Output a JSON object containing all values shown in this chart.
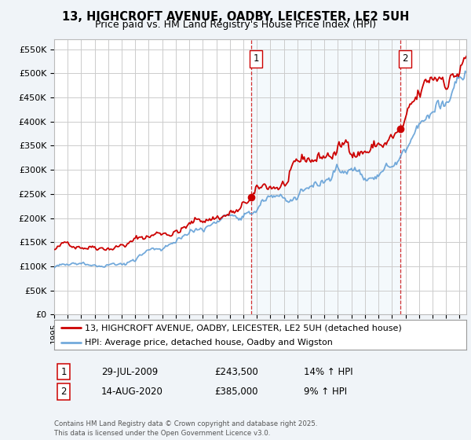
{
  "title_line1": "13, HIGHCROFT AVENUE, OADBY, LEICESTER, LE2 5UH",
  "title_line2": "Price paid vs. HM Land Registry's House Price Index (HPI)",
  "ylabel_ticks": [
    "£0",
    "£50K",
    "£100K",
    "£150K",
    "£200K",
    "£250K",
    "£300K",
    "£350K",
    "£400K",
    "£450K",
    "£500K",
    "£550K"
  ],
  "ytick_values": [
    0,
    50000,
    100000,
    150000,
    200000,
    250000,
    300000,
    350000,
    400000,
    450000,
    500000,
    550000
  ],
  "ylim": [
    0,
    570000
  ],
  "xlim_start": 1995.0,
  "xlim_end": 2025.5,
  "sale1_x": 2009.57,
  "sale1_y": 243500,
  "sale1_label": "1",
  "sale2_x": 2020.62,
  "sale2_y": 385000,
  "sale2_label": "2",
  "vline_color": "#cc0000",
  "legend_line1": "13, HIGHCROFT AVENUE, OADBY, LEICESTER, LE2 5UH (detached house)",
  "legend_line2": "HPI: Average price, detached house, Oadby and Wigston",
  "red_line_color": "#cc0000",
  "blue_line_color": "#5b9bd5",
  "blue_fill_color": "#d6e8f7",
  "annotation1_date": "29-JUL-2009",
  "annotation1_price": "£243,500",
  "annotation1_hpi": "14% ↑ HPI",
  "annotation2_date": "14-AUG-2020",
  "annotation2_price": "£385,000",
  "annotation2_hpi": "9% ↑ HPI",
  "footer": "Contains HM Land Registry data © Crown copyright and database right 2025.\nThis data is licensed under the Open Government Licence v3.0.",
  "bg_color": "#f0f4f8",
  "plot_bg_color": "#ffffff",
  "grid_color": "#cccccc"
}
